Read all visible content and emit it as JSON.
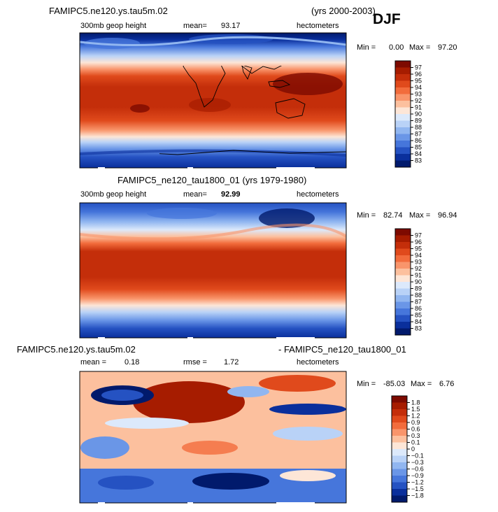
{
  "header": {
    "title_left": "FAMIPC5.ne120.ys.tau5m.02",
    "title_right": "(yrs 2000-2003)",
    "season": "DJF"
  },
  "panels": [
    {
      "title": "",
      "title_right": "",
      "label_left": "300mb geop height",
      "mean_label": "mean=",
      "mean_value": "93.17",
      "units": "hectometers",
      "min_label": "Min =",
      "min_value": "0.00",
      "max_label": "Max =",
      "max_value": "97.20",
      "colorbar_labels": [
        "97",
        "96",
        "95",
        "94",
        "93",
        "92",
        "91",
        "90",
        "89",
        "88",
        "87",
        "86",
        "85",
        "84",
        "83"
      ]
    },
    {
      "title": "FAMIPC5_ne120_tau1800_01 (yrs 1979-1980)",
      "title_right": "",
      "label_left": "300mb geop height",
      "mean_label": "mean=",
      "mean_value": "92.99",
      "units": "hectometers",
      "min_label": "Min =",
      "min_value": "82.74",
      "max_label": "Max =",
      "max_value": "96.94",
      "colorbar_labels": [
        "97",
        "96",
        "95",
        "94",
        "93",
        "92",
        "91",
        "90",
        "89",
        "88",
        "87",
        "86",
        "85",
        "84",
        "83"
      ]
    },
    {
      "title": "FAMIPC5.ne120.ys.tau5m.02",
      "title_right": "- FAMIPC5_ne120_tau1800_01",
      "label_left": "mean =",
      "mean_value": "0.18",
      "rmse_label": "rmse =",
      "rmse_value": "1.72",
      "units": "hectometers",
      "min_label": "Min =",
      "min_value": "-85.03",
      "max_label": "Max =",
      "max_value": "6.76",
      "colorbar_labels": [
        "1.8",
        "1.5",
        "1.2",
        "0.9",
        "0.6",
        "0.3",
        "0.1",
        "0",
        "−0.1",
        "−0.3",
        "−0.6",
        "−0.9",
        "−1.2",
        "−1.5",
        "−1.8"
      ]
    }
  ],
  "colors": {
    "scale": [
      "#7d0a00",
      "#a61c00",
      "#c42e0a",
      "#e04a1c",
      "#f26c3c",
      "#f9956b",
      "#fcc09e",
      "#fde6d7",
      "#dce9fb",
      "#b9d2f7",
      "#91b6f0",
      "#6a96e7",
      "#4676db",
      "#2552c2",
      "#0a2f9c",
      "#011a6c"
    ]
  },
  "chart_data": [
    {
      "type": "heatmap",
      "title": "FAMIPC5.ne120.ys.tau5m.02 (yrs 2000-2003) DJF",
      "field": "300mb geop height",
      "units": "hectometers",
      "mean": 93.17,
      "min": 0.0,
      "max": 97.2,
      "levels": [
        83,
        84,
        85,
        86,
        87,
        88,
        89,
        90,
        91,
        92,
        93,
        94,
        95,
        96,
        97
      ]
    },
    {
      "type": "heatmap",
      "title": "FAMIPC5_ne120_tau1800_01 (yrs 1979-1980)",
      "field": "300mb geop height",
      "units": "hectometers",
      "mean": 92.99,
      "min": 82.74,
      "max": 96.94,
      "levels": [
        83,
        84,
        85,
        86,
        87,
        88,
        89,
        90,
        91,
        92,
        93,
        94,
        95,
        96,
        97
      ]
    },
    {
      "type": "heatmap",
      "title": "FAMIPC5.ne120.ys.tau5m.02 - FAMIPC5_ne120_tau1800_01",
      "units": "hectometers",
      "mean": 0.18,
      "rmse": 1.72,
      "min": -85.03,
      "max": 6.76,
      "levels": [
        -1.8,
        -1.5,
        -1.2,
        -0.9,
        -0.6,
        -0.3,
        -0.1,
        0,
        0.1,
        0.3,
        0.6,
        0.9,
        1.2,
        1.5,
        1.8
      ]
    }
  ]
}
